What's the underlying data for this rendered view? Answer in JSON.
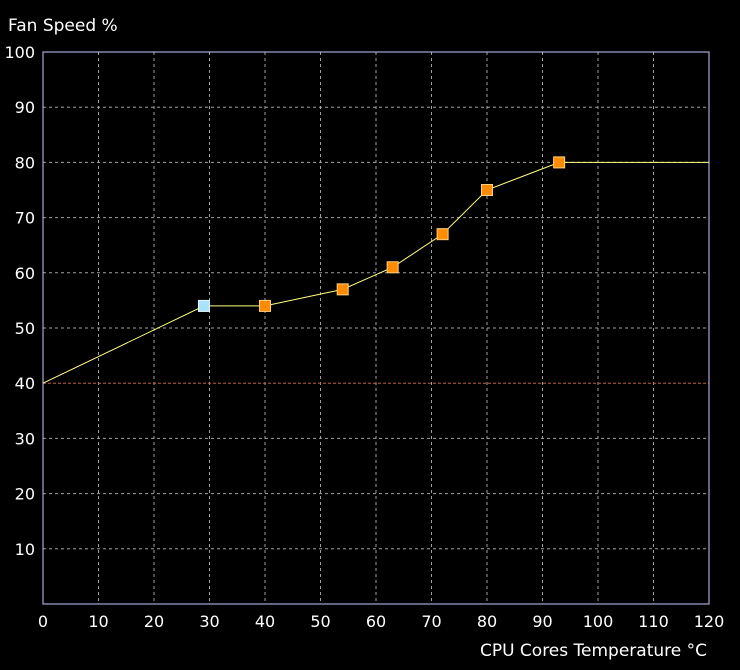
{
  "chart_data": {
    "type": "line",
    "ylabel": "Fan Speed %",
    "xlabel": "CPU Cores Temperature °C",
    "xlim": [
      0,
      120
    ],
    "ylim": [
      0,
      100
    ],
    "x_ticks": [
      0,
      10,
      20,
      30,
      40,
      50,
      60,
      70,
      80,
      90,
      100,
      110,
      120
    ],
    "y_ticks": [
      10,
      20,
      30,
      40,
      50,
      60,
      70,
      80,
      90,
      100
    ],
    "grid": true,
    "series": [
      {
        "points": [
          {
            "x": 0,
            "y": 40
          },
          {
            "x": 29,
            "y": 54
          },
          {
            "x": 40,
            "y": 54
          },
          {
            "x": 54,
            "y": 57
          },
          {
            "x": 63,
            "y": 61
          },
          {
            "x": 72,
            "y": 67
          },
          {
            "x": 80,
            "y": 75
          },
          {
            "x": 93,
            "y": 80
          },
          {
            "x": 120,
            "y": 80
          }
        ]
      }
    ],
    "control_points": [
      {
        "x": 29,
        "y": 54,
        "state": "selected"
      },
      {
        "x": 40,
        "y": 54,
        "state": "normal"
      },
      {
        "x": 54,
        "y": 57,
        "state": "normal"
      },
      {
        "x": 63,
        "y": 61,
        "state": "normal"
      },
      {
        "x": 72,
        "y": 67,
        "state": "normal"
      },
      {
        "x": 80,
        "y": 75,
        "state": "normal"
      },
      {
        "x": 93,
        "y": 80,
        "state": "normal"
      }
    ],
    "reference_line": {
      "y": 40,
      "color": "#c0603a"
    },
    "colors": {
      "background": "#000000",
      "frame": "#c8c8ff",
      "grid": "#a0a0a0",
      "curve": "#ffff80",
      "point_fill": "#ff8c00",
      "point_border": "#ffd080",
      "selected_fill": "#a8e4ff",
      "selected_border": "#e8f8ff",
      "text": "#ffffff"
    }
  }
}
